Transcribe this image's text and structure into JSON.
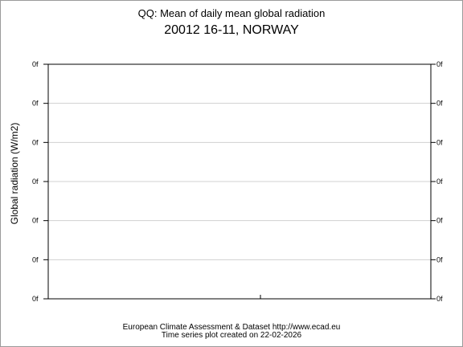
{
  "chart_data": {
    "type": "line",
    "title": "QQ: Mean of daily mean global radiation",
    "subtitle": "20012 16-11, NORWAY",
    "ylabel": "Global radiation (W/m2)",
    "xlabel": "",
    "y_tick_labels": [
      "0f",
      "0f",
      "0f",
      "0f",
      "0f",
      "0f",
      "0f"
    ],
    "x_tick_labels": [],
    "series": [],
    "grid": true
  },
  "footer": {
    "line1": "European Climate Assessment & Dataset  http://www.ecad.eu",
    "line2": "Time series plot created on 22-02-2026"
  },
  "colors": {
    "frame": "#9a9a9a",
    "grid": "#d0d0d0",
    "axes": "#000000"
  }
}
